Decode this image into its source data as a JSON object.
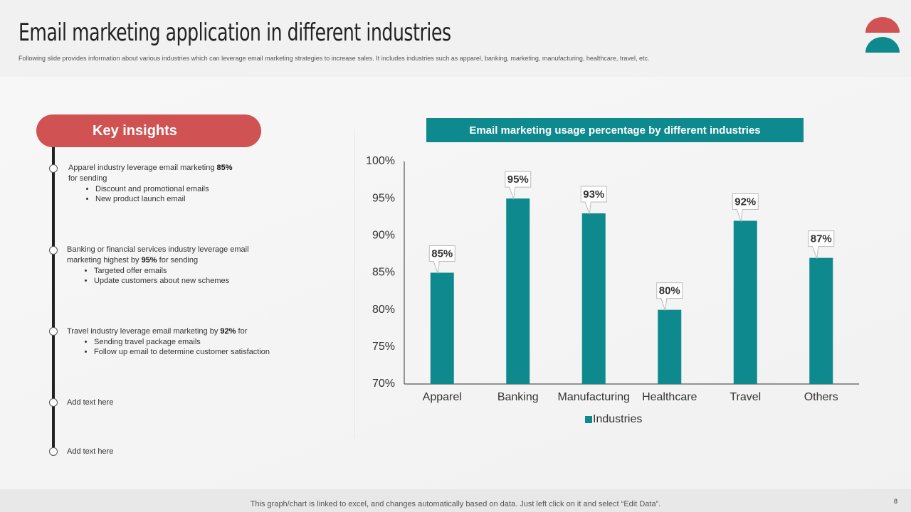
{
  "header": {
    "title": "Email marketing application in different industries",
    "subtitle": "Following slide provides information about various industries which can leverage email marketing strategies to increase sales. It includes industries such as apparel, banking, marketing, manufacturing, healthcare, travel, etc."
  },
  "insights": {
    "heading": "Key insights",
    "items": [
      {
        "text": "Apparel industry leverage email marketing",
        "highlight": "85%",
        "after": "for sending",
        "bullets": [
          "Discount and promotional emails",
          "New product launch email"
        ]
      },
      {
        "text": "Banking or financial services industry leverage email marketing highest by",
        "highlight": "95%",
        "after": "for sending",
        "bullets": [
          "Targeted offer emails",
          "Update customers about new schemes"
        ]
      },
      {
        "text": "Travel industry leverage email marketing by",
        "highlight": "92%",
        "after": "for",
        "bullets": [
          "Sending travel package emails",
          "Follow up email to determine customer satisfaction"
        ]
      },
      {
        "text": "Add text here"
      },
      {
        "text": "Add text here"
      }
    ]
  },
  "chart_data": {
    "type": "bar",
    "title": "Email marketing usage percentage by different industries",
    "categories": [
      "Apparel",
      "Banking",
      "Manufacturing",
      "Healthcare",
      "Travel",
      "Others"
    ],
    "series": [
      {
        "name": "Industries",
        "color": "#0e8a8f",
        "values": [
          85,
          95,
          93,
          80,
          92,
          87
        ],
        "value_labels": [
          "85%",
          "95%",
          "93%",
          "80%",
          "92%",
          "87%"
        ]
      }
    ],
    "ylim": [
      70,
      100
    ],
    "yticks": [
      {
        "value": 70,
        "label": "70%"
      },
      {
        "value": 75,
        "label": "75%"
      },
      {
        "value": 80,
        "label": "80%"
      },
      {
        "value": 85,
        "label": "85%"
      },
      {
        "value": 90,
        "label": "90%"
      },
      {
        "value": 95,
        "label": "95%"
      },
      {
        "value": 100,
        "label": "100%"
      }
    ],
    "grid": false,
    "legend": "bottom"
  },
  "footer": {
    "note": "This graph/chart is linked to excel, and changes automatically based on data. Just left click on it and select “Edit Data”.",
    "page": "8"
  }
}
